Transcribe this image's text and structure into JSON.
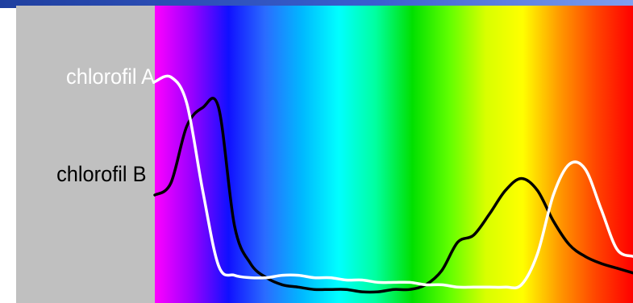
{
  "chart_data": {
    "type": "line",
    "title": "",
    "xlabel": "",
    "ylabel": "",
    "background": "visible spectrum (violet to red)",
    "spectrum_colors": [
      "#ff00ff",
      "#9a00ff",
      "#1010ff",
      "#2a6cff",
      "#00b8ff",
      "#00ffff",
      "#00ffa0",
      "#00e000",
      "#60ff00",
      "#d8ff00",
      "#ffff00",
      "#ff9900",
      "#ff4400",
      "#ff0000"
    ],
    "x": [
      400,
      410,
      420,
      430,
      440,
      450,
      460,
      470,
      480,
      490,
      500,
      510,
      520,
      530,
      540,
      550,
      560,
      570,
      580,
      590,
      600,
      610,
      620,
      630,
      640,
      650,
      660,
      670,
      680,
      690,
      700
    ],
    "xlim": [
      400,
      700
    ],
    "ylim": [
      0,
      1
    ],
    "grid": false,
    "series": [
      {
        "name": "chlorofil A",
        "color": "#ffffff",
        "values": [
          0.91,
          0.93,
          0.82,
          0.45,
          0.13,
          0.09,
          0.08,
          0.08,
          0.09,
          0.09,
          0.08,
          0.08,
          0.07,
          0.07,
          0.06,
          0.06,
          0.06,
          0.05,
          0.05,
          0.04,
          0.04,
          0.04,
          0.04,
          0.05,
          0.18,
          0.43,
          0.56,
          0.54,
          0.37,
          0.2,
          0.17
        ]
      },
      {
        "name": "chlorofil B",
        "color": "#000000",
        "values": [
          0.43,
          0.48,
          0.72,
          0.8,
          0.8,
          0.3,
          0.14,
          0.08,
          0.05,
          0.04,
          0.03,
          0.03,
          0.03,
          0.02,
          0.02,
          0.03,
          0.03,
          0.05,
          0.11,
          0.23,
          0.26,
          0.35,
          0.45,
          0.5,
          0.45,
          0.32,
          0.22,
          0.17,
          0.14,
          0.12,
          0.1
        ]
      }
    ]
  }
}
